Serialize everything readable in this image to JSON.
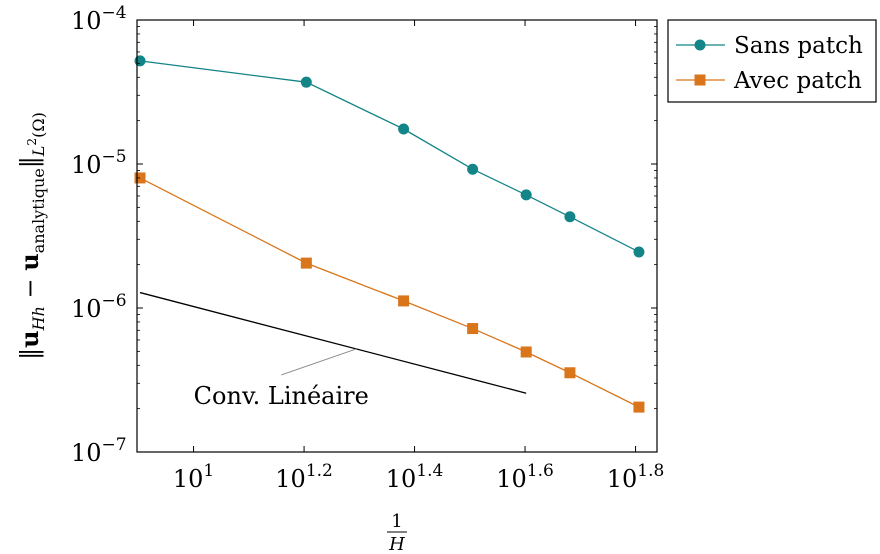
{
  "chart_data": {
    "type": "line",
    "x_scale": "log",
    "y_scale": "log",
    "xlabel_numerator": "1",
    "xlabel_denominator": "H",
    "ylabel": "‖u_{Hh} − u_{analytique}‖_{L²(Ω)}",
    "xlim": [
      7.9,
      69
    ],
    "ylim": [
      1e-07,
      0.0001
    ],
    "grid": false,
    "legend_position": "outside-top-right",
    "x_ticks": [
      {
        "value": 10,
        "base": "10",
        "exp": "1"
      },
      {
        "value": 15.85,
        "base": "10",
        "exp": "1.2"
      },
      {
        "value": 25.12,
        "base": "10",
        "exp": "1.4"
      },
      {
        "value": 39.81,
        "base": "10",
        "exp": "1.6"
      },
      {
        "value": 63.1,
        "base": "10",
        "exp": "1.8"
      }
    ],
    "y_ticks": [
      {
        "value": 0.0001,
        "base": "10",
        "exp": "−4"
      },
      {
        "value": 1e-05,
        "base": "10",
        "exp": "−5"
      },
      {
        "value": 1e-06,
        "base": "10",
        "exp": "−6"
      },
      {
        "value": 1e-07,
        "base": "10",
        "exp": "−7"
      }
    ],
    "series": [
      {
        "name": "Sans patch",
        "color": "#138487",
        "marker": "circle",
        "x": [
          8,
          16,
          24,
          32,
          40,
          48,
          64
        ],
        "y": [
          5.2e-05,
          3.7e-05,
          1.75e-05,
          9.2e-06,
          6.1e-06,
          4.3e-06,
          2.45e-06
        ]
      },
      {
        "name": "Avec patch",
        "color": "#d9751a",
        "marker": "square",
        "x": [
          8,
          16,
          24,
          32,
          40,
          48,
          64
        ],
        "y": [
          8e-06,
          2.05e-06,
          1.12e-06,
          7.2e-07,
          4.95e-07,
          3.55e-07,
          2.05e-07
        ]
      }
    ],
    "annotations": [
      {
        "type": "reference-line",
        "label": "Conv. Linéaire",
        "x": [
          8,
          40
        ],
        "y": [
          1.28e-06,
          2.56e-07
        ],
        "color": "#000000"
      }
    ]
  }
}
